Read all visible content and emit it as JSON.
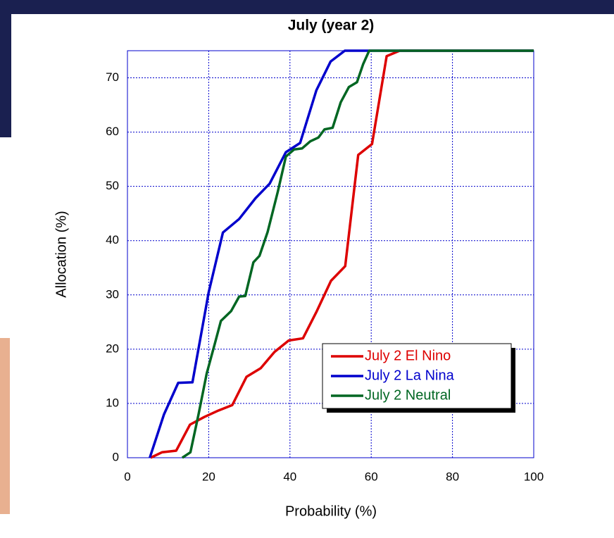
{
  "chart_data": {
    "type": "line",
    "title": "July (year 2)",
    "x_label": "Probability (%)",
    "y_label": "Allocation (%)",
    "xlim": [
      0,
      100
    ],
    "ylim": [
      0,
      75
    ],
    "xticks": [
      0,
      20,
      40,
      60,
      80,
      100
    ],
    "yticks": [
      0,
      10,
      20,
      30,
      40,
      50,
      60,
      70
    ],
    "grid": true,
    "legend": "lower right",
    "series": [
      {
        "name": "July 2 El Nino",
        "color": "#dd0000",
        "x": [
          5.7,
          8.5,
          12,
          15.4,
          18.9,
          22.4,
          25.8,
          29.3,
          32.8,
          36.2,
          39.7,
          43.2,
          46.6,
          50.1,
          53.6,
          56.8,
          60.2,
          63.8,
          67,
          100
        ],
        "values": [
          0,
          1,
          1.3,
          6.1,
          7.5,
          8.7,
          9.7,
          14.9,
          16.5,
          19.5,
          21.6,
          22,
          27,
          32.6,
          35.3,
          55.8,
          57.8,
          74,
          75,
          75
        ]
      },
      {
        "name": "July 2 La Nina",
        "color": "#0000cc",
        "x": [
          5.5,
          9,
          12.5,
          16,
          20,
          23.5,
          27.5,
          31.5,
          35,
          39,
          42.5,
          46.5,
          50,
          53.5,
          100
        ],
        "values": [
          0,
          8,
          13.8,
          13.9,
          30.5,
          41.5,
          44,
          47.8,
          50.5,
          56.3,
          58,
          67.7,
          73,
          75,
          75
        ]
      },
      {
        "name": "July 2 Neutral",
        "color": "#006622",
        "x": [
          13.5,
          15.5,
          17.5,
          19.5,
          21.5,
          23,
          25.5,
          27.5,
          29,
          31,
          32.5,
          34.5,
          37,
          39,
          41,
          43,
          45,
          47,
          48.5,
          50.5,
          52.5,
          54.5,
          56.5,
          58,
          59.5,
          100
        ],
        "values": [
          0,
          1,
          8,
          15.5,
          21,
          25.2,
          27,
          29.7,
          29.8,
          36,
          37.2,
          41.6,
          49,
          55.5,
          56.8,
          57,
          58.3,
          59,
          60.5,
          60.8,
          65.5,
          68.3,
          69.2,
          72.5,
          75,
          75
        ]
      }
    ]
  }
}
